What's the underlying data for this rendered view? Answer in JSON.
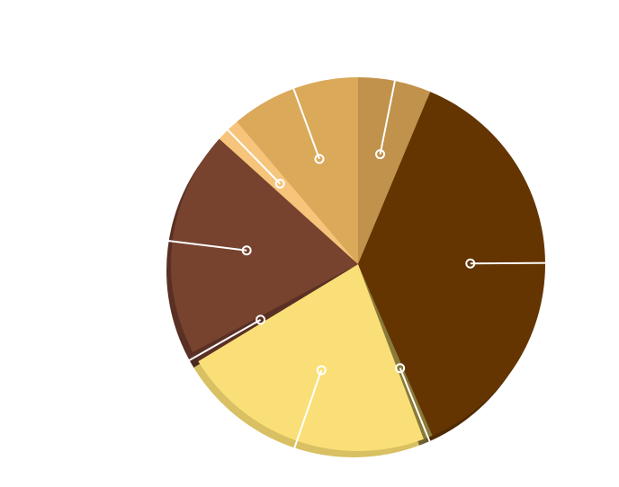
{
  "chart_data": {
    "type": "pie",
    "style": "3d-exploded",
    "legend": "none",
    "data_labels": "none",
    "slices": [
      {
        "value": 6.3,
        "color": "#C1924B",
        "side_color": "#A77B3A"
      },
      {
        "value": 37.2,
        "color": "#653501",
        "side_color": "#4E2A01"
      },
      {
        "value": 0.8,
        "color": "#8A7A3A",
        "side_color": "#6E6130"
      },
      {
        "value": 22.0,
        "color": "#FADF78",
        "side_color": "#D8C063"
      },
      {
        "value": 0.9,
        "color": "#5A3024",
        "side_color": "#4A2A1F"
      },
      {
        "value": 19.5,
        "color": "#77432F",
        "side_color": "#5A3024"
      },
      {
        "value": 2.1,
        "color": "#F6C47A",
        "side_color": "#DDA961"
      },
      {
        "value": 11.2,
        "color": "#DBA95A",
        "side_color": "#C29045"
      }
    ]
  }
}
